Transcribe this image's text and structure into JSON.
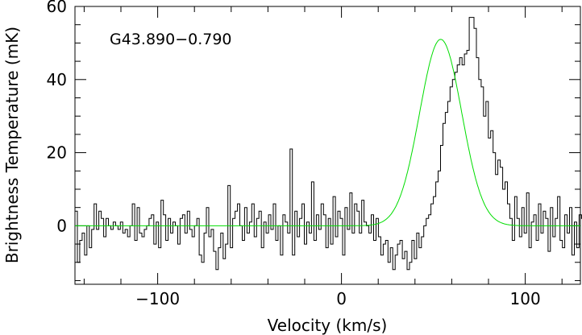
{
  "chart_data": {
    "type": "line",
    "annotation": "G43.890−0.790",
    "xlabel": "Velocity (km/s)",
    "ylabel": "Brightness Temperature (mK)",
    "xlim": [
      -145,
      130
    ],
    "ylim": [
      -16,
      60
    ],
    "xticks_major": [
      -100,
      0,
      100
    ],
    "xtick_labels": [
      "−100",
      "0",
      "100"
    ],
    "yticks_major": [
      0,
      20,
      40,
      60
    ],
    "ytick_labels": [
      "0",
      "20",
      "40",
      "60"
    ],
    "x_minor_step": 20,
    "y_minor_step": 5,
    "series": [
      {
        "kind": "histogram-step",
        "color": "#000000",
        "x_start": -145,
        "x_step": 1.3,
        "values": [
          4,
          -10,
          -4,
          -2,
          -8,
          0,
          -6,
          -1,
          6,
          -1,
          4,
          2,
          -3,
          2,
          0,
          -1,
          1,
          0,
          -1,
          1,
          -2,
          -1,
          -3,
          0,
          6,
          -4,
          5,
          -2,
          -3,
          -1,
          0,
          2,
          3,
          -5,
          1,
          -6,
          7,
          3,
          -4,
          2,
          -2,
          1,
          0,
          -5,
          2,
          3,
          -2,
          4,
          -1,
          -3,
          0,
          2,
          -8,
          -10,
          -2,
          5,
          -3,
          -1,
          -7,
          -12,
          -6,
          -2,
          -9,
          -5,
          11,
          -6,
          2,
          4,
          6,
          0,
          -4,
          5,
          -2,
          1,
          6,
          -3,
          2,
          4,
          -6,
          1,
          -2,
          3,
          -1,
          6,
          -4,
          0,
          -8,
          3,
          1,
          -2,
          21,
          -8,
          4,
          -3,
          2,
          6,
          -5,
          1,
          -2,
          12,
          -4,
          3,
          -1,
          6,
          3,
          -6,
          2,
          -5,
          8,
          -3,
          4,
          2,
          -8,
          5,
          -1,
          9,
          -2,
          6,
          4,
          -2,
          7,
          1,
          0,
          -2,
          3,
          -4,
          2,
          -3,
          -8,
          -5,
          -4,
          -10,
          -6,
          -12,
          -8,
          -5,
          -4,
          -9,
          -7,
          -12,
          -10,
          -4,
          -9,
          -2,
          -6,
          -3,
          0,
          2,
          3,
          6,
          8,
          12,
          15,
          22,
          28,
          31,
          34,
          38,
          40,
          42,
          44,
          46,
          44,
          47,
          48,
          57,
          57,
          54,
          46,
          40,
          38,
          30,
          34,
          24,
          26,
          20,
          14,
          18,
          16,
          10,
          12,
          6,
          2,
          -4,
          8,
          2,
          -3,
          5,
          -2,
          9,
          -6,
          1,
          3,
          -4,
          6,
          -2,
          4,
          2,
          -7,
          5,
          -3,
          2,
          8,
          -4,
          -6,
          3,
          -2,
          5,
          -8,
          1,
          -6,
          3,
          2,
          8,
          -5,
          0,
          6,
          -4,
          -8,
          4,
          1,
          -2,
          3,
          -6,
          0,
          -9,
          6
        ]
      },
      {
        "kind": "gaussian-fit",
        "color": "#00dd00",
        "amplitude": 51,
        "center": 54,
        "fwhm": 27,
        "x_range": [
          -145,
          130
        ]
      }
    ],
    "grid": false,
    "legend": "none"
  }
}
